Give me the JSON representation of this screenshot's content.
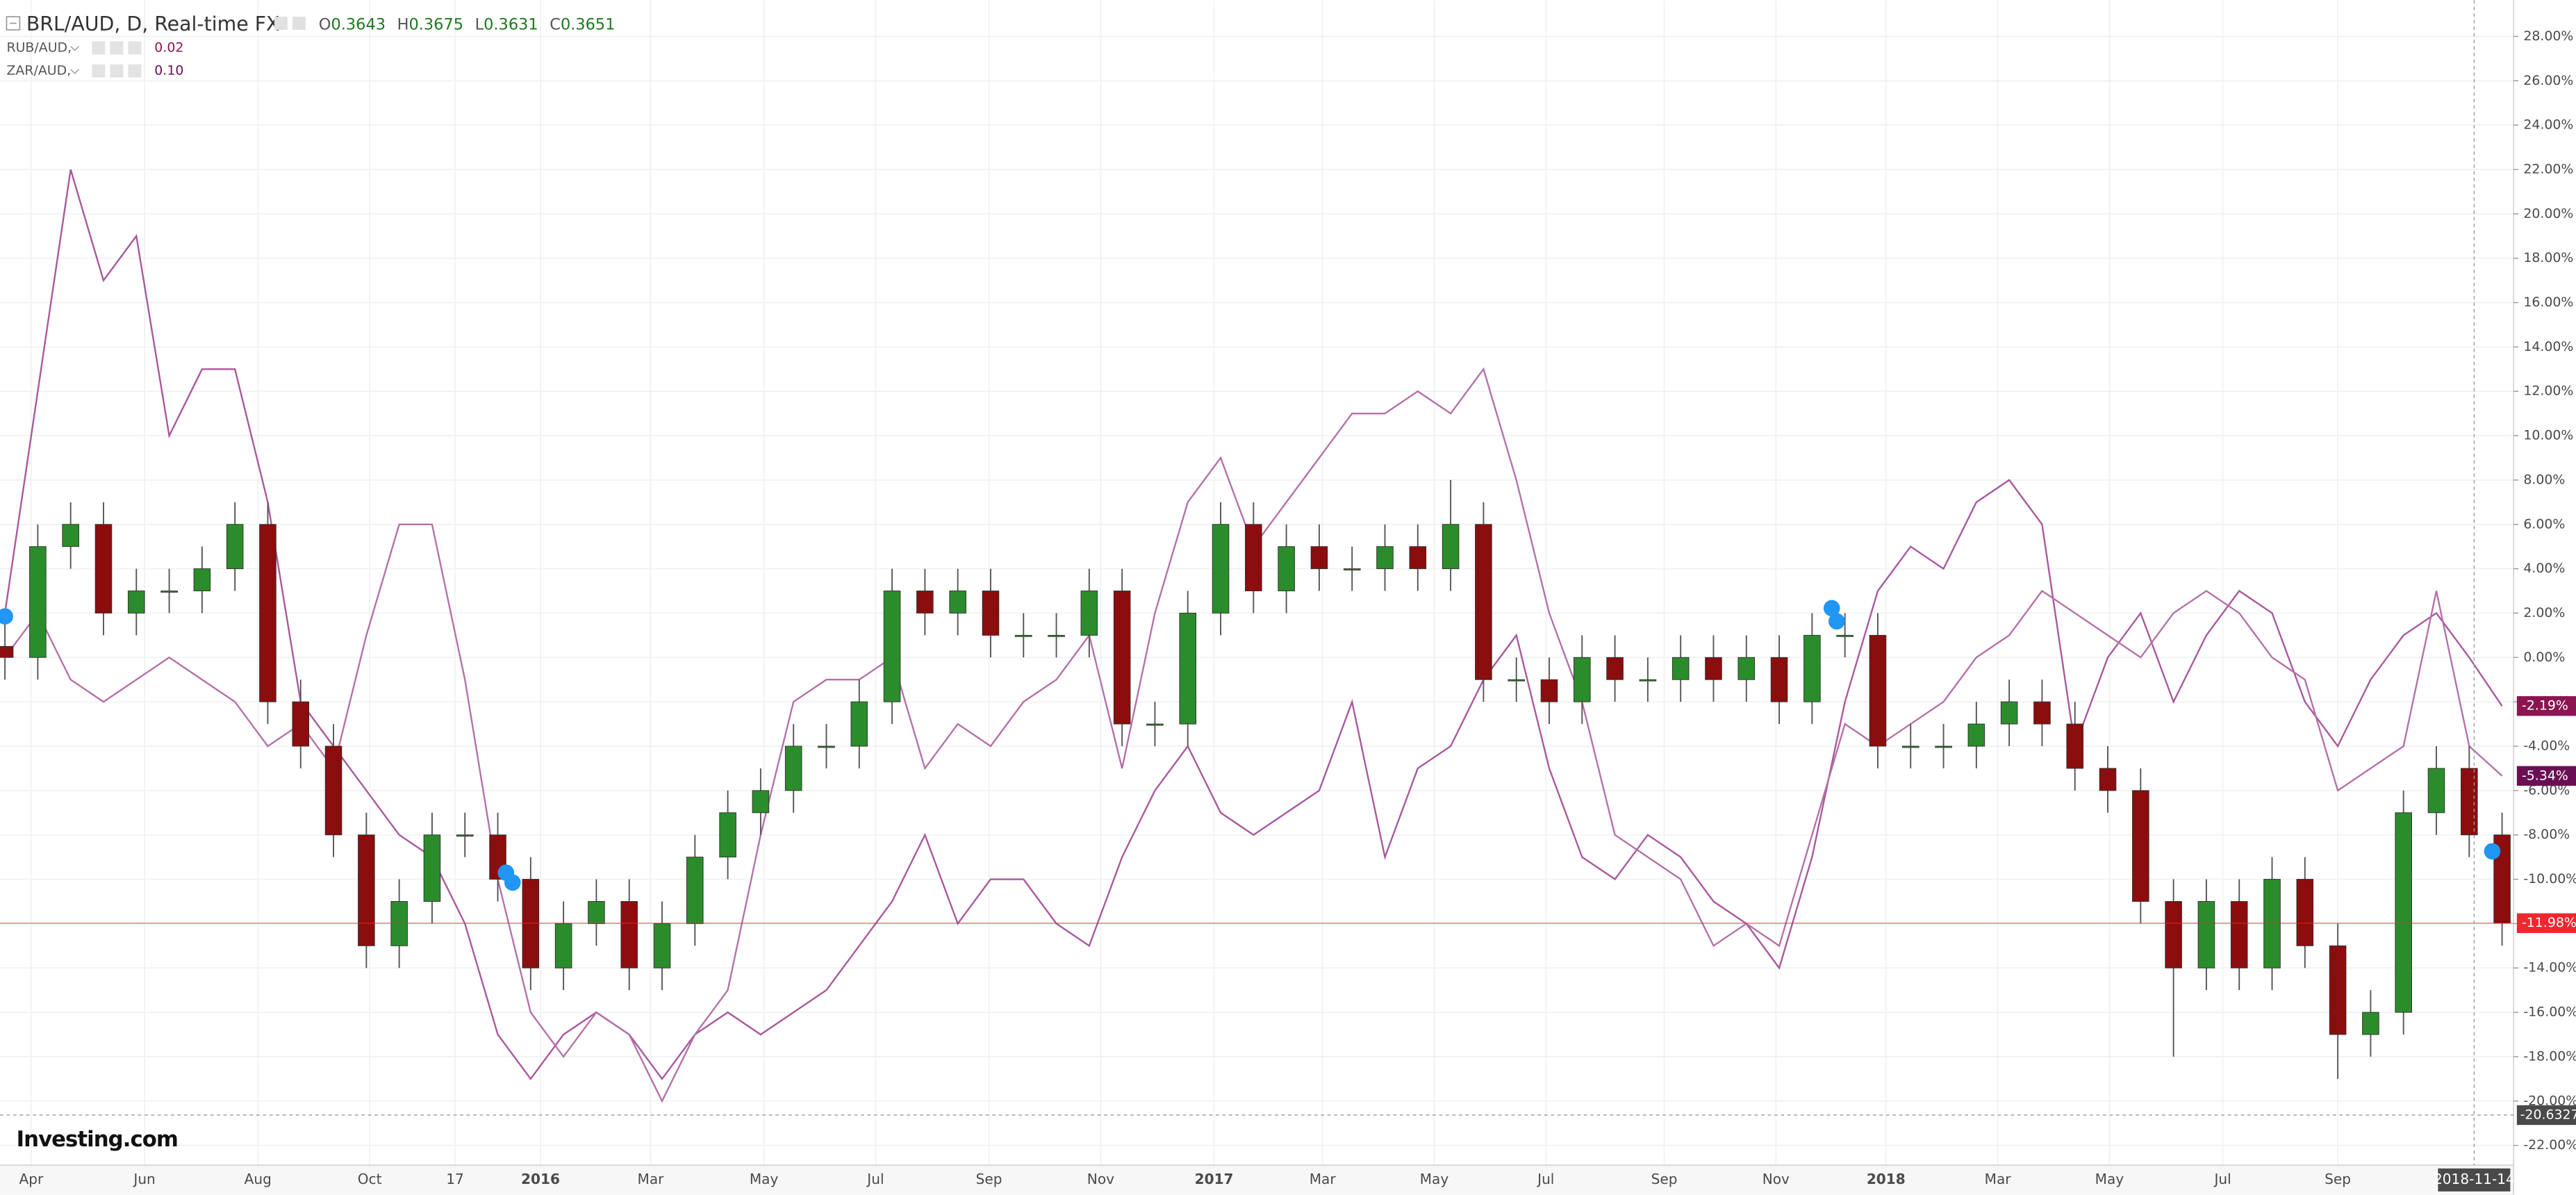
{
  "chart_data": {
    "type": "candlestick",
    "title": "BRL/AUD, D, Real-time FX",
    "ohlc_header": [
      {
        "key": "O",
        "value": 0.3643
      },
      {
        "key": "H",
        "value": 0.3675
      },
      {
        "key": "L",
        "value": 0.3631
      },
      {
        "key": "C",
        "value": 0.3651
      }
    ],
    "candles": {
      "up_color": "#2b8c2b",
      "down_color": "#8b0d0d",
      "last_label": "-11.98%",
      "last_color": "#f2262f",
      "open": [
        0.5,
        0,
        5,
        6,
        2,
        3,
        3,
        4,
        6,
        -2,
        -4,
        -8,
        -13,
        -11,
        -8,
        -8,
        -10,
        -14,
        -12,
        -11,
        -14,
        -12,
        -9,
        -7,
        -6,
        -4,
        -4,
        -2,
        3,
        2,
        3,
        1,
        1,
        1,
        3,
        -3,
        -3,
        2,
        6,
        3,
        5,
        4,
        4,
        5,
        4,
        6,
        -1,
        -1,
        -2,
        0,
        -1,
        -1,
        0,
        -1,
        0,
        -2,
        1,
        1,
        -4,
        -4,
        -4,
        -3,
        -2,
        -3,
        -5,
        -6,
        -11,
        -14,
        -11,
        -14,
        -10,
        -13,
        -17,
        -16,
        -7,
        -5,
        -8
      ],
      "high": [
        1.5,
        6,
        7,
        7,
        4,
        4,
        5,
        7,
        7,
        -1,
        -3,
        -7,
        -10,
        -7,
        -7,
        -7,
        -9,
        -11,
        -10,
        -10,
        -11,
        -8,
        -6,
        -5,
        -3,
        -3,
        -1,
        4,
        4,
        4,
        4,
        2,
        2,
        4,
        4,
        -2,
        3,
        7,
        7,
        6,
        6,
        5,
        6,
        6,
        8,
        7,
        0,
        0,
        1,
        1,
        0,
        1,
        1,
        1,
        1,
        2,
        2,
        2,
        -3,
        -3,
        -2,
        -1,
        -1,
        -2,
        -4,
        -5,
        -10,
        -10,
        -10,
        -9,
        -9,
        -12,
        -15,
        -6,
        -4,
        -4,
        -7
      ],
      "low": [
        -1,
        -1,
        4,
        1,
        1,
        2,
        2,
        3,
        -3,
        -5,
        -9,
        -14,
        -14,
        -12,
        -9,
        -11,
        -15,
        -15,
        -13,
        -15,
        -15,
        -13,
        -10,
        -8,
        -7,
        -5,
        -5,
        -3,
        1,
        1,
        0,
        0,
        0,
        0,
        -4,
        -4,
        -4,
        1,
        2,
        2,
        3,
        3,
        3,
        3,
        3,
        -2,
        -2,
        -3,
        -3,
        -2,
        -2,
        -2,
        -2,
        -2,
        -3,
        -3,
        0,
        -5,
        -5,
        -5,
        -5,
        -4,
        -4,
        -6,
        -7,
        -12,
        -18,
        -15,
        -15,
        -15,
        -14,
        -19,
        -18,
        -17,
        -8,
        -9,
        -13
      ],
      "close": [
        0,
        5,
        6,
        2,
        3,
        3,
        4,
        6,
        -2,
        -4,
        -8,
        -13,
        -11,
        -8,
        -8,
        -10,
        -14,
        -12,
        -11,
        -14,
        -12,
        -9,
        -7,
        -6,
        -4,
        -4,
        -2,
        3,
        2,
        3,
        1,
        1,
        1,
        3,
        -3,
        -3,
        2,
        6,
        3,
        5,
        4,
        4,
        5,
        4,
        6,
        -1,
        -1,
        -2,
        0,
        -1,
        -1,
        0,
        -1,
        0,
        -2,
        1,
        1,
        -4,
        -4,
        -4,
        -3,
        -2,
        -3,
        -5,
        -6,
        -11,
        -14,
        -11,
        -14,
        -10,
        -13,
        -17,
        -16,
        -7,
        -5,
        -8,
        -11.98
      ]
    },
    "series": [
      {
        "name": "RUB/AUD,",
        "legend_value": "0.02",
        "color": "#a9579d",
        "tag_color": "#8c1551",
        "last_label": "-2.19%",
        "values": [
          2,
          12,
          22,
          17,
          19,
          10,
          13,
          13,
          7,
          -2,
          -4,
          -6,
          -8,
          -9,
          -12,
          -17,
          -19,
          -17,
          -16,
          -17,
          -19,
          -17,
          -16,
          -17,
          -16,
          -15,
          -13,
          -11,
          -8,
          -12,
          -10,
          -10,
          -12,
          -13,
          -9,
          -6,
          -4,
          -7,
          -8,
          -7,
          -6,
          -2,
          -9,
          -5,
          -4,
          -1,
          1,
          -5,
          -9,
          -10,
          -8,
          -9,
          -11,
          -12,
          -14,
          -9,
          -2,
          3,
          5,
          4,
          7,
          8,
          6,
          -4,
          0,
          2,
          -2,
          1,
          3,
          2,
          -2,
          -4,
          -1,
          1,
          2,
          0,
          -2.19
        ]
      },
      {
        "name": "ZAR/AUD,",
        "legend_value": "0.10",
        "color": "#b470a9",
        "tag_color": "#6b0f54",
        "last_label": "-5.34%",
        "values": [
          0,
          2,
          -1,
          -2,
          -1,
          0,
          -1,
          -2,
          -4,
          -3,
          -5,
          1,
          6,
          6,
          -1,
          -10,
          -16,
          -18,
          -16,
          -17,
          -20,
          -17,
          -15,
          -8,
          -2,
          -1,
          -1,
          0,
          -5,
          -3,
          -4,
          -2,
          -1,
          1,
          -5,
          2,
          7,
          9,
          5,
          7,
          9,
          11,
          11,
          12,
          11,
          13,
          8,
          2,
          -2,
          -8,
          -9,
          -10,
          -13,
          -12,
          -13,
          -8,
          -3,
          -4,
          -3,
          -2,
          0,
          1,
          3,
          2,
          1,
          0,
          2,
          3,
          2,
          0,
          -1,
          -6,
          -5,
          -4,
          3,
          -4,
          -5.34
        ]
      }
    ],
    "crosshair_y": -20.6327,
    "logo": "Investing.com",
    "xlim": [
      -0.15,
      76.35
    ],
    "xticks": [
      {
        "value": 0.8,
        "label": "Apr"
      },
      {
        "value": 4.25,
        "label": "Jun"
      },
      {
        "value": 7.7,
        "label": "Aug"
      },
      {
        "value": 11.1,
        "label": "Oct"
      },
      {
        "value": 13.7,
        "label": "17"
      },
      {
        "value": 16.3,
        "label": "2016"
      },
      {
        "value": 19.65,
        "label": "Mar"
      },
      {
        "value": 23.1,
        "label": "May"
      },
      {
        "value": 26.5,
        "label": "Jul"
      },
      {
        "value": 29.95,
        "label": "Sep"
      },
      {
        "value": 33.35,
        "label": "Nov"
      },
      {
        "value": 36.8,
        "label": "2017"
      },
      {
        "value": 40.1,
        "label": "Mar"
      },
      {
        "value": 43.5,
        "label": "May"
      },
      {
        "value": 46.9,
        "label": "Jul"
      },
      {
        "value": 50.5,
        "label": "Sep"
      },
      {
        "value": 53.9,
        "label": "Nov"
      },
      {
        "value": 57.25,
        "label": "2018"
      },
      {
        "value": 60.65,
        "label": "Mar"
      },
      {
        "value": 64.05,
        "label": "May"
      },
      {
        "value": 67.5,
        "label": "Jul"
      },
      {
        "value": 71,
        "label": "Sep"
      },
      {
        "value": 75.15,
        "label": "2018-11-14"
      }
    ],
    "ylim": [
      -22.89,
      29.63
    ],
    "yticks": [
      {
        "value": -22,
        "label": "-22.00%"
      },
      {
        "value": -20,
        "label": "-20.00%"
      },
      {
        "value": -18,
        "label": "-18.00%"
      },
      {
        "value": -16,
        "label": "-16.00%"
      },
      {
        "value": -14,
        "label": "-14.00%"
      },
      {
        "value": -12,
        "label": "-12.00%"
      },
      {
        "value": -10,
        "label": "-10.00%"
      },
      {
        "value": -8,
        "label": "-8.00%"
      },
      {
        "value": -6,
        "label": "-6.00%"
      },
      {
        "value": -4,
        "label": "-4.00%"
      },
      {
        "value": -2,
        "label": "-2.00%"
      },
      {
        "value": 0,
        "label": "0.00%"
      },
      {
        "value": 2,
        "label": "2.00%"
      },
      {
        "value": 4,
        "label": "4.00%"
      },
      {
        "value": 6,
        "label": "6.00%"
      },
      {
        "value": 8,
        "label": "8.00%"
      },
      {
        "value": 10,
        "label": "10.00%"
      },
      {
        "value": 12,
        "label": "12.00%"
      },
      {
        "value": 14,
        "label": "14.00%"
      },
      {
        "value": 16,
        "label": "16.00%"
      },
      {
        "value": 18,
        "label": "18.00%"
      },
      {
        "value": 20,
        "label": "20.00%"
      },
      {
        "value": 22,
        "label": "22.00%"
      },
      {
        "value": 24,
        "label": "24.00%"
      },
      {
        "value": 26,
        "label": "26.00%"
      },
      {
        "value": 28,
        "label": "28.00%"
      }
    ],
    "grid": true
  }
}
